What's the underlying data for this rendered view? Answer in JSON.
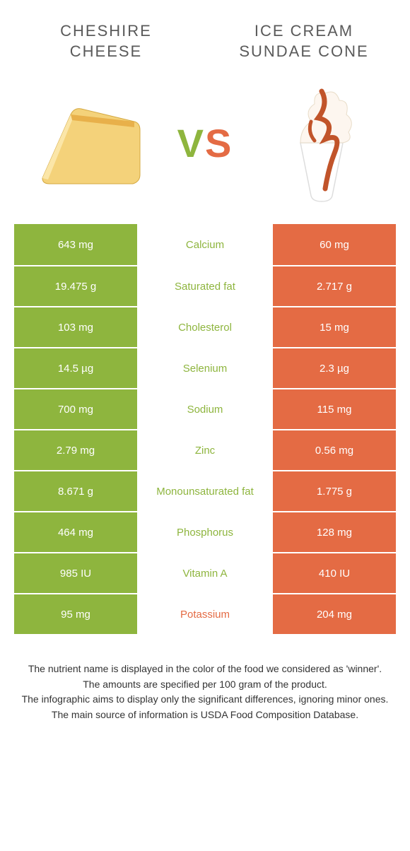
{
  "colors": {
    "green": "#8eb53e",
    "orange": "#e46b44",
    "header_text": "#5a5a5a"
  },
  "header": {
    "left_title": "Cheshire cheese",
    "right_title": "Ice cream sundae cone",
    "vs_text": "VS"
  },
  "rows": [
    {
      "left": "643 mg",
      "label": "Calcium",
      "right": "60 mg",
      "winner": "left"
    },
    {
      "left": "19.475 g",
      "label": "Saturated fat",
      "right": "2.717 g",
      "winner": "left"
    },
    {
      "left": "103 mg",
      "label": "Cholesterol",
      "right": "15 mg",
      "winner": "left"
    },
    {
      "left": "14.5 µg",
      "label": "Selenium",
      "right": "2.3 µg",
      "winner": "left"
    },
    {
      "left": "700 mg",
      "label": "Sodium",
      "right": "115 mg",
      "winner": "left"
    },
    {
      "left": "2.79 mg",
      "label": "Zinc",
      "right": "0.56 mg",
      "winner": "left"
    },
    {
      "left": "8.671 g",
      "label": "Monounsaturated fat",
      "right": "1.775 g",
      "winner": "left"
    },
    {
      "left": "464 mg",
      "label": "Phosphorus",
      "right": "128 mg",
      "winner": "left"
    },
    {
      "left": "985 IU",
      "label": "Vitamin A",
      "right": "410 IU",
      "winner": "left"
    },
    {
      "left": "95 mg",
      "label": "Potassium",
      "right": "204 mg",
      "winner": "right"
    }
  ],
  "footnotes": [
    "The nutrient name is displayed in the color of the food we considered as 'winner'.",
    "The amounts are specified per 100 gram of the product.",
    "The infographic aims to display only the significant differences, ignoring minor ones.",
    "The main source of information is USDA Food Composition Database."
  ]
}
